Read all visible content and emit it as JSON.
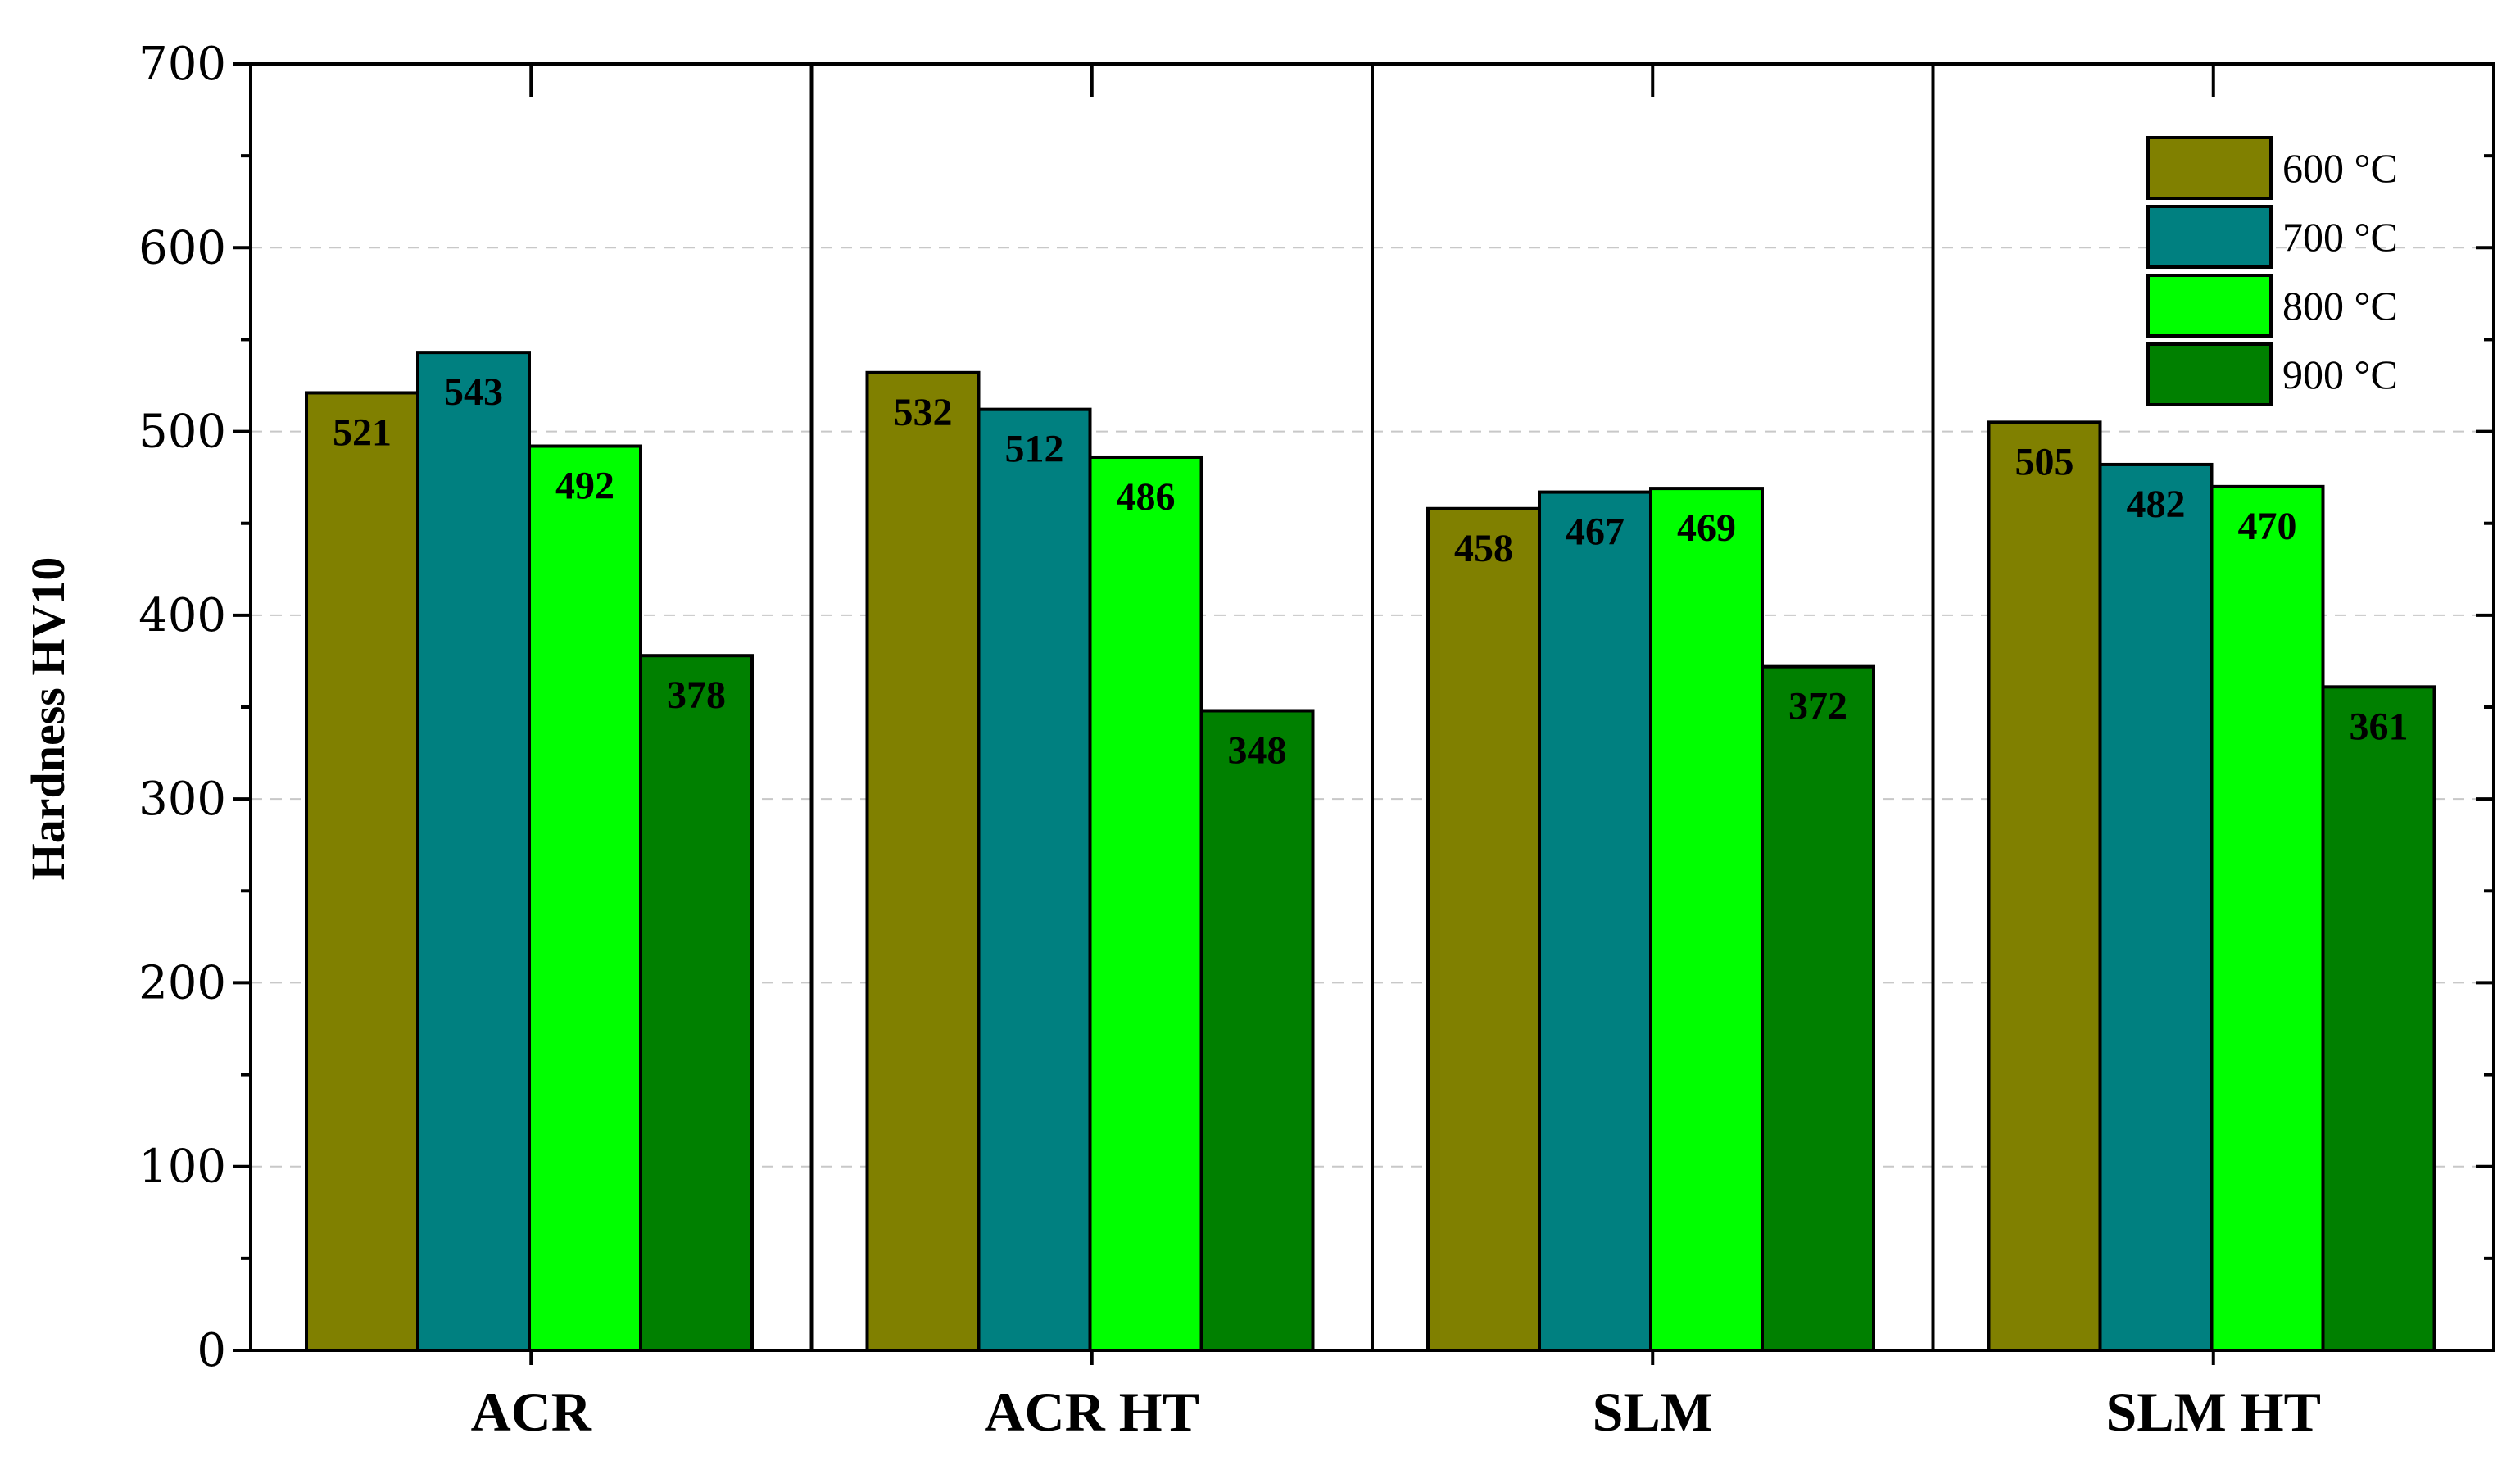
{
  "chart_data": {
    "type": "bar",
    "title": "",
    "xlabel": "",
    "ylabel": "Hardness HV10",
    "ylim": [
      0,
      700
    ],
    "yticks": [
      0,
      100,
      200,
      300,
      400,
      500,
      600,
      700
    ],
    "grid": "horizontal dashed",
    "legend_position": "top-right",
    "categories": [
      "ACR",
      "ACR HT",
      "SLM",
      "SLM HT"
    ],
    "series": [
      {
        "name": "600 °C",
        "color": "#808000",
        "values": [
          521,
          532,
          458,
          505
        ]
      },
      {
        "name": "700 °C",
        "color": "#008080",
        "values": [
          543,
          512,
          467,
          482
        ]
      },
      {
        "name": "800 °C",
        "color": "#00ff00",
        "values": [
          492,
          486,
          469,
          470
        ]
      },
      {
        "name": "900 °C",
        "color": "#008000",
        "values": [
          378,
          348,
          372,
          361
        ]
      }
    ]
  }
}
